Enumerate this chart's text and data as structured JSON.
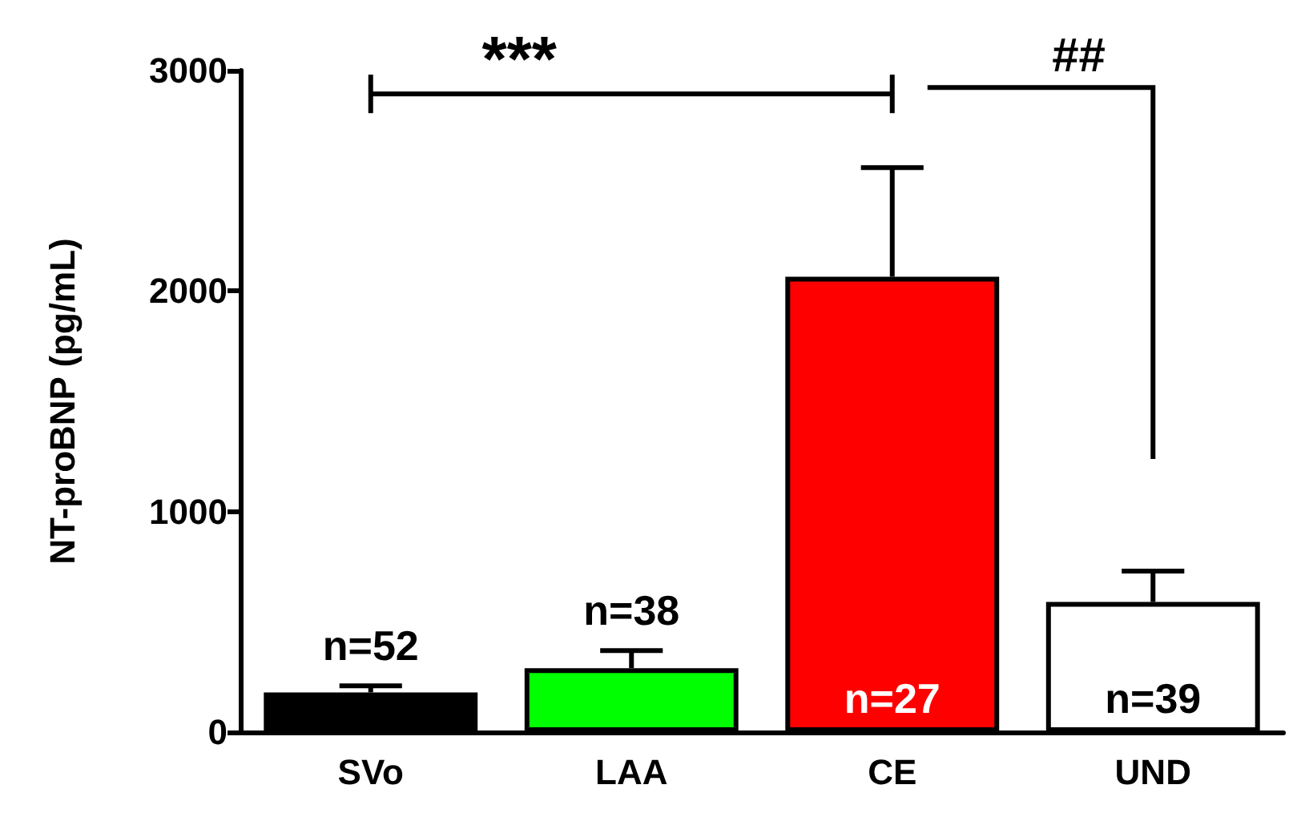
{
  "chart_data": {
    "type": "bar",
    "ylabel": "NT-proBNP (pg/mL)",
    "categories": [
      "SVo",
      "LAA",
      "CE",
      "UND"
    ],
    "values": [
      180,
      290,
      2065,
      590
    ],
    "colors": [
      "#000000",
      "#00ff00",
      "#ff0000",
      "#ffffff"
    ],
    "errors": [
      [
        180,
        210
      ],
      [
        290,
        370
      ],
      [
        2065,
        2560
      ],
      [
        590,
        730
      ]
    ],
    "ylim": [
      0,
      3000
    ],
    "yticks": [
      0,
      1000,
      2000,
      3000
    ],
    "grid": false,
    "annotations": [
      "***",
      "##",
      "n=52",
      "n=38",
      "n=27",
      "n=39"
    ]
  }
}
